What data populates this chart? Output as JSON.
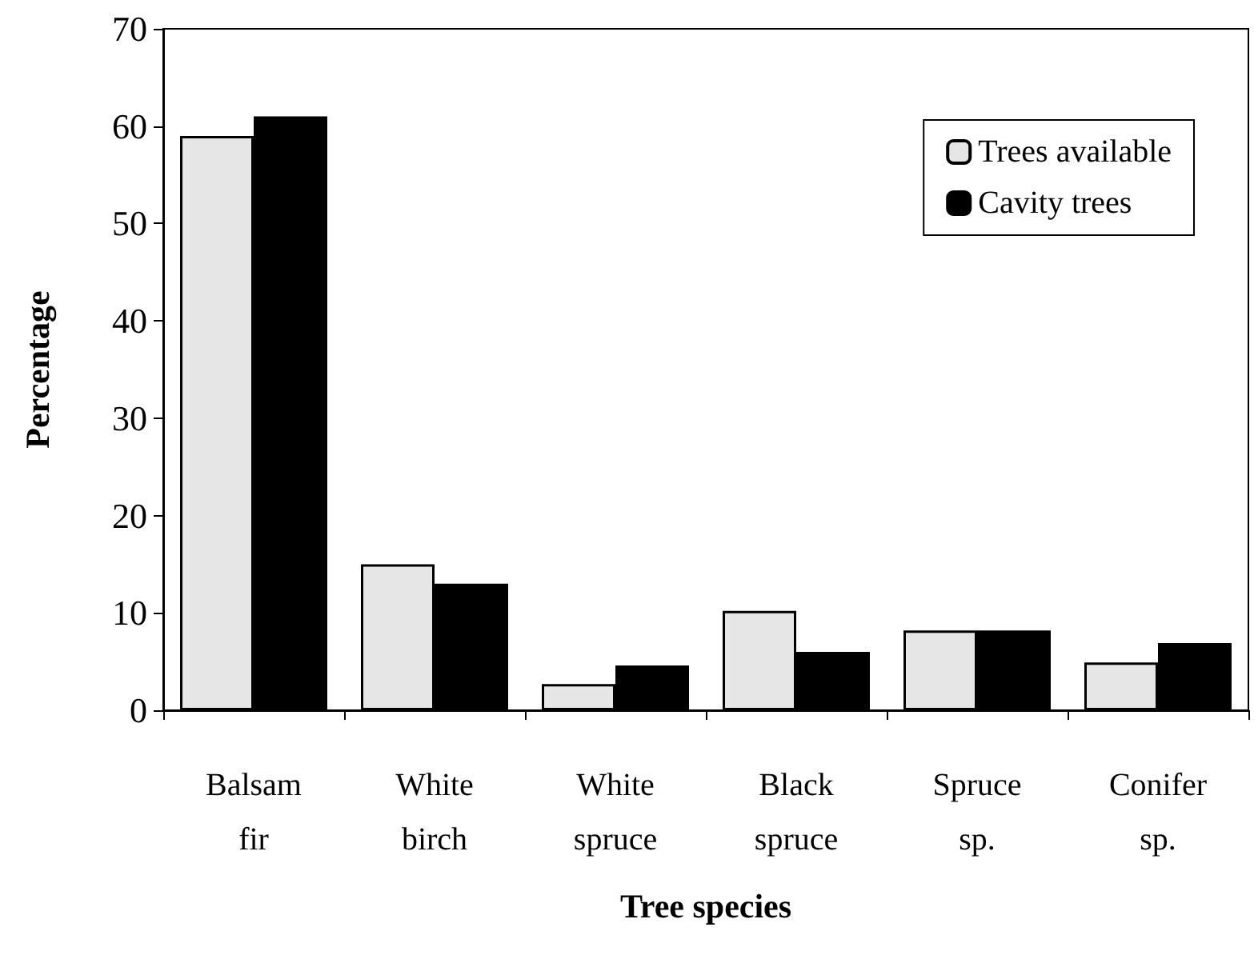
{
  "chart_data": {
    "type": "bar",
    "xlabel": "Tree species",
    "ylabel": "Percentage",
    "categories": [
      "Balsam\nfir",
      "White\nbirch",
      "White\nspruce",
      "Black\nspruce",
      "Spruce\nsp.",
      "Conifer\nsp."
    ],
    "series": [
      {
        "name": "Trees available",
        "color": "#e6e6e6",
        "values": [
          59,
          15,
          2.7,
          10.2,
          8.2,
          4.9
        ]
      },
      {
        "name": "Cavity trees",
        "color": "#000000",
        "values": [
          61,
          13,
          4.6,
          6.0,
          8.2,
          6.9
        ]
      }
    ],
    "ylim": [
      0,
      70
    ],
    "yticks": [
      0,
      10,
      20,
      30,
      40,
      50,
      60,
      70
    ],
    "grid": false,
    "legend": "top right"
  }
}
